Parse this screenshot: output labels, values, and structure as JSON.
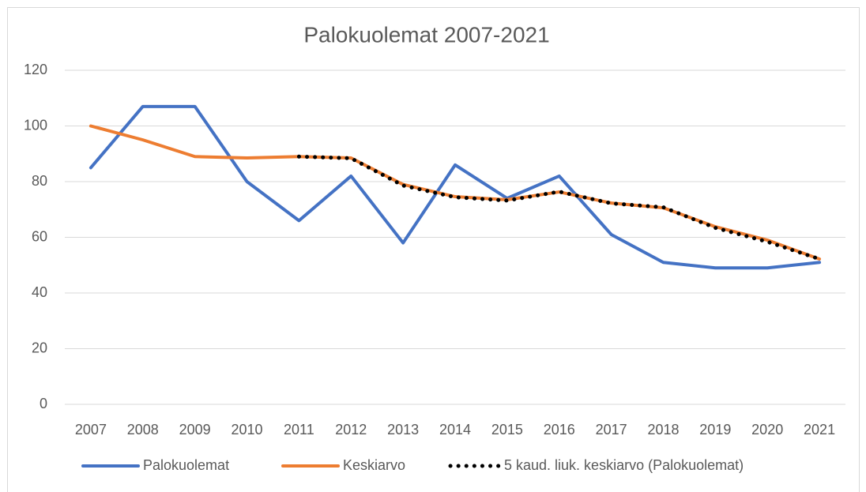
{
  "chart_data": {
    "type": "line",
    "title": "Palokuolemat 2007-2021",
    "categories": [
      "2007",
      "2008",
      "2009",
      "2010",
      "2011",
      "2012",
      "2013",
      "2014",
      "2015",
      "2016",
      "2017",
      "2018",
      "2019",
      "2020",
      "2021"
    ],
    "series": [
      {
        "name": "Palokuolemat",
        "color": "#4472c4",
        "style": "solid",
        "values": [
          85,
          107,
          107,
          80,
          66,
          82,
          58,
          86,
          74,
          82,
          61,
          51,
          49,
          49,
          51
        ]
      },
      {
        "name": "Keskiarvo",
        "color": "#ed7d31",
        "style": "solid",
        "values": [
          100,
          95,
          89,
          88.5,
          89,
          88.5,
          79,
          74.6,
          73.5,
          76.3,
          72.3,
          70.6,
          63.8,
          59,
          52.2
        ]
      },
      {
        "name": "5 kaud. liuk. keskiarvo (Palokuolemat)",
        "color": "#000000",
        "style": "dotted",
        "values": [
          null,
          null,
          null,
          null,
          89,
          88.4,
          78.6,
          74.4,
          73.2,
          76.4,
          72.2,
          70.8,
          63.4,
          58.4,
          52.2
        ]
      }
    ],
    "ylim": [
      0,
      120
    ],
    "yticks": [
      0,
      20,
      40,
      60,
      80,
      100,
      120
    ],
    "grid": true,
    "legend": "bottom"
  }
}
